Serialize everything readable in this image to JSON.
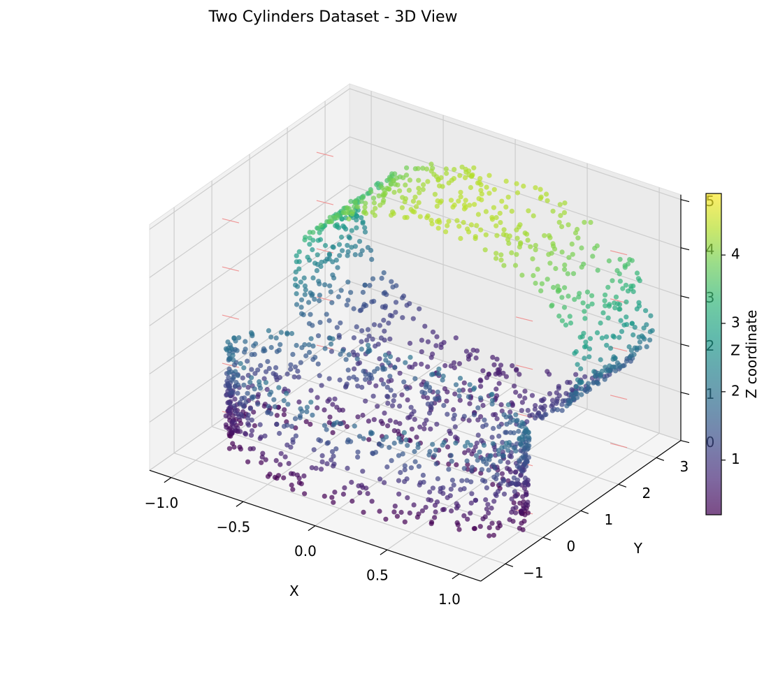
{
  "chart_data": {
    "type": "scatter",
    "projection": "3d",
    "title": "Two Cylinders Dataset - 3D View",
    "xlabel": "X",
    "ylabel": "Y",
    "zlabel": "Z",
    "xlim": [
      -1.15,
      1.15
    ],
    "ylim": [
      -1.65,
      3.65
    ],
    "zlim": [
      0,
      5.1
    ],
    "x_ticks": [
      -1.0,
      -0.5,
      0.0,
      0.5,
      1.0
    ],
    "x_tick_labels": [
      "−1.0",
      "−0.5",
      "0.0",
      "0.5",
      "1.0"
    ],
    "y_ticks": [
      -1,
      0,
      1,
      2,
      3
    ],
    "y_tick_labels": [
      "−1",
      "0",
      "1",
      "2",
      "3"
    ],
    "z_ticks": [
      0,
      1,
      2,
      3,
      4,
      5
    ],
    "z_tick_labels": [
      "0",
      "1",
      "2",
      "3",
      "4",
      "5"
    ],
    "grid": true,
    "colormap": "viridis",
    "point_alpha": 0.7,
    "colorbar": {
      "label": "Z coordinate",
      "range": [
        0.2,
        4.9
      ],
      "ticks": [
        1,
        2,
        3,
        4
      ],
      "tick_labels": [
        "1",
        "2",
        "3",
        "4"
      ]
    },
    "series": [
      {
        "shape": "cylinder",
        "axis": "z",
        "center": [
          0,
          0
        ],
        "radius": 1.0,
        "z_range": [
          0.0,
          2.0
        ],
        "n_points": 900
      },
      {
        "shape": "cylinder",
        "axis": "y",
        "center": [
          0,
          2.5
        ],
        "radius": 1.0,
        "extent_y": [
          1.5,
          3.5
        ],
        "n_points": 900
      }
    ],
    "reference_lines_color": "#f08080"
  }
}
